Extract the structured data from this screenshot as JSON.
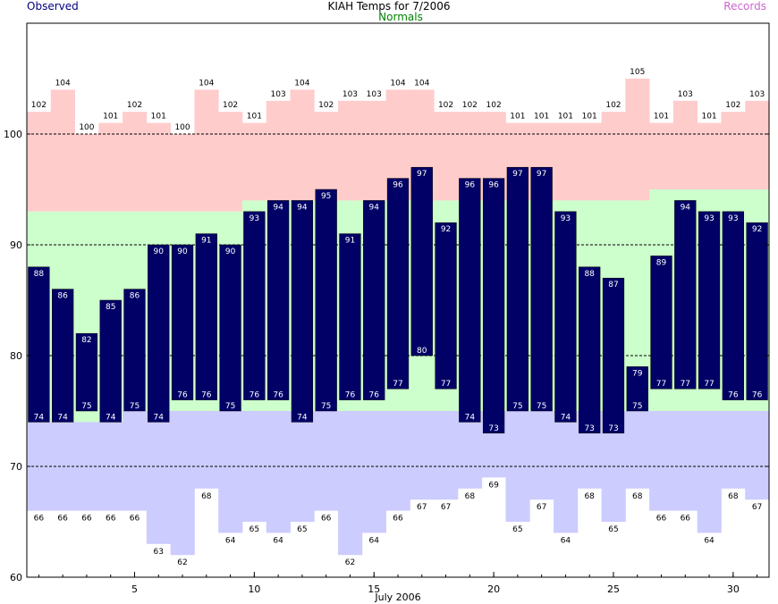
{
  "chart_data": {
    "type": "bar",
    "title": "KIAH Temps for 7/2006",
    "xlabel": "July 2006",
    "ylabel": "",
    "ylim": [
      60,
      110
    ],
    "xlim": [
      0.5,
      31.5
    ],
    "y_ticks": [
      "60",
      "70",
      "80",
      "90",
      "100"
    ],
    "x_ticks": [
      {
        "day": 5,
        "label": "5"
      },
      {
        "day": 10,
        "label": "10"
      },
      {
        "day": 15,
        "label": "15"
      },
      {
        "day": 20,
        "label": "20"
      },
      {
        "day": 25,
        "label": "25"
      },
      {
        "day": 30,
        "label": "30"
      }
    ],
    "dashed_gridlines": [
      70,
      80,
      90,
      100
    ],
    "legend": {
      "observed": "Observed",
      "normals": "Normals",
      "records": "Records",
      "placement": "top"
    },
    "days": [
      1,
      2,
      3,
      4,
      5,
      6,
      7,
      8,
      9,
      10,
      11,
      12,
      13,
      14,
      15,
      16,
      17,
      18,
      19,
      20,
      21,
      22,
      23,
      24,
      25,
      26,
      27,
      28,
      29,
      30,
      31
    ],
    "series": [
      {
        "name": "Observed",
        "kind": "high",
        "values": [
          88,
          86,
          82,
          85,
          86,
          90,
          90,
          91,
          90,
          93,
          94,
          94,
          95,
          91,
          94,
          96,
          97,
          92,
          96,
          96,
          97,
          97,
          93,
          88,
          87,
          79,
          89,
          94,
          93,
          93,
          92
        ]
      },
      {
        "name": "Observed",
        "kind": "low",
        "values": [
          74,
          74,
          75,
          74,
          75,
          74,
          76,
          76,
          75,
          76,
          76,
          74,
          75,
          76,
          76,
          77,
          80,
          77,
          74,
          73,
          75,
          75,
          74,
          73,
          73,
          75,
          77,
          77,
          77,
          76,
          76
        ]
      },
      {
        "name": "Normals",
        "kind": "high",
        "values": [
          93,
          93,
          93,
          93,
          93,
          93,
          93,
          93,
          93,
          94,
          94,
          94,
          94,
          94,
          94,
          94,
          94,
          94,
          94,
          94,
          94,
          94,
          94,
          94,
          94,
          94,
          95,
          95,
          95,
          95,
          95
        ]
      },
      {
        "name": "Normals",
        "kind": "low",
        "values": [
          74,
          74,
          74,
          74,
          75,
          75,
          75,
          75,
          75,
          75,
          75,
          75,
          75,
          75,
          75,
          75,
          75,
          75,
          75,
          75,
          75,
          75,
          75,
          75,
          75,
          75,
          75,
          75,
          75,
          75,
          75
        ]
      },
      {
        "name": "Records",
        "kind": "high",
        "values": [
          102,
          104,
          100,
          101,
          102,
          101,
          100,
          104,
          102,
          101,
          103,
          104,
          102,
          103,
          103,
          104,
          104,
          102,
          102,
          102,
          101,
          101,
          101,
          101,
          102,
          105,
          101,
          103,
          101,
          102,
          103
        ]
      },
      {
        "name": "Records",
        "kind": "low",
        "values": [
          66,
          66,
          66,
          66,
          66,
          63,
          62,
          68,
          64,
          65,
          64,
          65,
          66,
          62,
          64,
          66,
          67,
          67,
          68,
          69,
          65,
          67,
          64,
          68,
          65,
          68,
          66,
          66,
          64,
          68,
          67
        ]
      }
    ],
    "colors": {
      "observed_bar": "#000066",
      "observed_label": "#ffffff",
      "normal_band": "#ccffcc",
      "record_high_band": "#ffcccc",
      "record_low_band": "#ccccff",
      "grid": "#000000",
      "observed_title": "#000080",
      "normals_title": "#008000",
      "records_title": "#cc66cc"
    }
  }
}
